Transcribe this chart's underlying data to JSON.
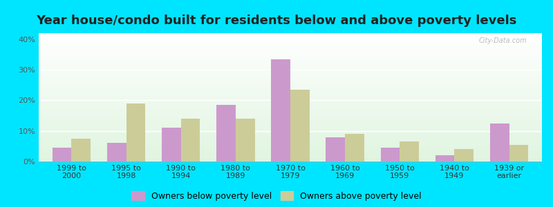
{
  "title": "Year house/condo built for residents below and above poverty levels",
  "categories": [
    "1999 to\n2000",
    "1995 to\n1998",
    "1990 to\n1994",
    "1980 to\n1989",
    "1970 to\n1979",
    "1960 to\n1969",
    "1950 to\n1959",
    "1940 to\n1949",
    "1939 or\nearlier"
  ],
  "below_poverty": [
    4.5,
    6.0,
    11.0,
    18.5,
    33.5,
    8.0,
    4.5,
    2.0,
    12.5
  ],
  "above_poverty": [
    7.5,
    19.0,
    14.0,
    14.0,
    23.5,
    9.0,
    6.5,
    4.0,
    5.5
  ],
  "below_color": "#cc99cc",
  "above_color": "#cccc99",
  "outer_bg": "#00e5ff",
  "ylim": [
    0,
    42
  ],
  "yticks": [
    0,
    10,
    20,
    30,
    40
  ],
  "ytick_labels": [
    "0%",
    "10%",
    "20%",
    "30%",
    "40%"
  ],
  "legend_below": "Owners below poverty level",
  "legend_above": "Owners above poverty level",
  "title_fontsize": 13,
  "tick_fontsize": 8,
  "legend_fontsize": 9
}
